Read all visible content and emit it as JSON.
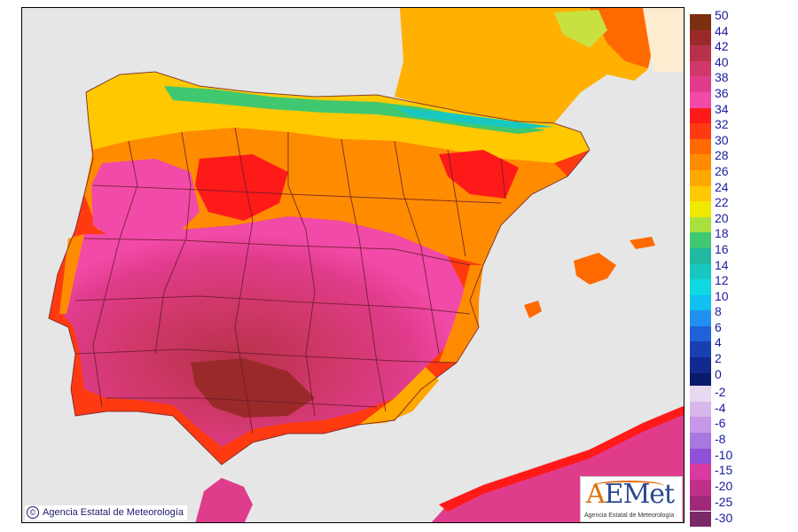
{
  "copyright": "Agencia Estatal de Meteorología",
  "logo": {
    "wordmark_a": "A",
    "wordmark_rest": "EMet",
    "subtitle": "Agencia Estatal de Meteorología"
  },
  "legend_top": [
    {
      "label": "50",
      "color": "#7a2f0f"
    },
    {
      "label": "44",
      "color": "#9a2a2a"
    },
    {
      "label": "42",
      "color": "#b8314a"
    },
    {
      "label": "40",
      "color": "#d0386a"
    },
    {
      "label": "38",
      "color": "#e03c8c"
    },
    {
      "label": "36",
      "color": "#f24aa8"
    },
    {
      "label": "34",
      "color": "#ff1a1a"
    },
    {
      "label": "32",
      "color": "#ff3a10"
    },
    {
      "label": "30",
      "color": "#ff6a00"
    },
    {
      "label": "28",
      "color": "#ff8c00"
    },
    {
      "label": "26",
      "color": "#ffa800"
    },
    {
      "label": "24",
      "color": "#ffc800"
    },
    {
      "label": "22",
      "color": "#f0e800"
    },
    {
      "label": "20",
      "color": "#a8e040"
    },
    {
      "label": "18",
      "color": "#40c870"
    },
    {
      "label": "16",
      "color": "#20b8a0"
    },
    {
      "label": "14",
      "color": "#18c8c0"
    },
    {
      "label": "12",
      "color": "#10d8e0"
    },
    {
      "label": "10",
      "color": "#10c0f0"
    },
    {
      "label": "8",
      "color": "#2090f0"
    },
    {
      "label": "6",
      "color": "#2060d8"
    },
    {
      "label": "4",
      "color": "#1840b0"
    },
    {
      "label": "2",
      "color": "#102a90"
    },
    {
      "label": "0",
      "color": "#0a1a6a"
    }
  ],
  "legend_bottom": [
    {
      "label": "-2",
      "color": "#e8d8f0"
    },
    {
      "label": "-4",
      "color": "#d8b8ec"
    },
    {
      "label": "-6",
      "color": "#c898e8"
    },
    {
      "label": "-8",
      "color": "#a878e0"
    },
    {
      "label": "-10",
      "color": "#9050d8"
    },
    {
      "label": "-15",
      "color": "#d83aa0"
    },
    {
      "label": "-20",
      "color": "#c0308a"
    },
    {
      "label": "-25",
      "color": "#a02878"
    },
    {
      "label": "-30",
      "color": "#7a2868"
    }
  ]
}
